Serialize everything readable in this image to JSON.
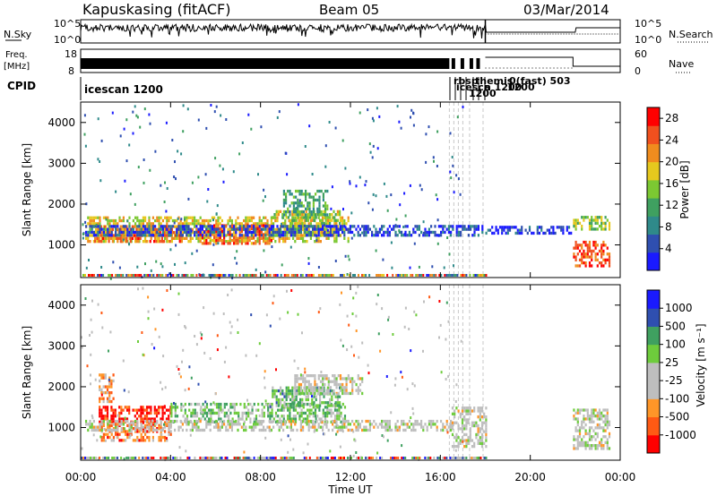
{
  "header": {
    "station": "Kapuskasing (fitACF)",
    "beam": "Beam 05",
    "date": "03/Mar/2014"
  },
  "panels": {
    "nsky": {
      "left_label": "N.Sky",
      "right_label": "N.Search",
      "left_ticks": [
        "10^5",
        "10^0"
      ],
      "right_ticks": [
        "10^5",
        "10^0"
      ]
    },
    "freq": {
      "left_label": "Freq.",
      "left_unit": "[MHz]",
      "left_ticks": [
        "18",
        "8"
      ],
      "right_label": "Nave",
      "right_ticks": [
        "60",
        "0"
      ]
    },
    "cpid": {
      "label": "CPID",
      "segments": [
        {
          "text": "icescan 1200"
        },
        {
          "text": "rbsp"
        },
        {
          "text": "icesca"
        },
        {
          "text": "themis"
        },
        {
          "text": "n 1200"
        },
        {
          "text": "0(fast) 503"
        },
        {
          "text": "1200"
        },
        {
          "text": "1200"
        }
      ]
    }
  },
  "colors": {
    "power": [
      "#1a1aff",
      "#2f4fb0",
      "#2f8a8a",
      "#3fa060",
      "#7cc832",
      "#e6c81e",
      "#f08c1e",
      "#f0501e",
      "#ff0000"
    ],
    "velocity": [
      "#ff0000",
      "#ff5a14",
      "#ff9628",
      "#bebebe",
      "#bebebe",
      "#6ecc3c",
      "#3fa060",
      "#2f4fb0",
      "#1a1aff"
    ]
  },
  "chart_data": [
    {
      "type": "heatmap",
      "id": "power",
      "ylabel": "Slant Range [km]",
      "yticks": [
        "1000",
        "2000",
        "3000",
        "4000"
      ],
      "ylim": [
        200,
        4500
      ],
      "xlim": [
        0,
        24
      ],
      "colorbar_label": "Power [dB]",
      "colorbar_ticks": [
        "4",
        "8",
        "12",
        "16",
        "20",
        "24",
        "28"
      ],
      "colorbar_range": [
        0,
        30
      ],
      "bands": [
        {
          "x0": 0.2,
          "x1": 11.9,
          "y0": 1050,
          "y1": 1650,
          "level": 0.62
        },
        {
          "x0": 0.6,
          "x1": 4.5,
          "y0": 1050,
          "y1": 1450,
          "level": 0.78
        },
        {
          "x0": 5.2,
          "x1": 8.5,
          "y0": 1000,
          "y1": 1450,
          "level": 0.82
        },
        {
          "x0": 8.5,
          "x1": 11.5,
          "y0": 1200,
          "y1": 1800,
          "level": 0.55
        },
        {
          "x0": 9.0,
          "x1": 11.0,
          "y0": 1700,
          "y1": 2300,
          "level": 0.35
        },
        {
          "x0": 0.2,
          "x1": 17.9,
          "y0": 1200,
          "y1": 1450,
          "level": 0.1
        },
        {
          "x0": 18.0,
          "x1": 21.8,
          "y0": 1250,
          "y1": 1400,
          "level": 0.05
        },
        {
          "x0": 21.9,
          "x1": 23.5,
          "y0": 450,
          "y1": 1050,
          "level": 0.88
        },
        {
          "x0": 21.9,
          "x1": 23.5,
          "y0": 1350,
          "y1": 1650,
          "level": 0.5
        }
      ]
    },
    {
      "type": "heatmap",
      "id": "velocity",
      "ylabel": "Slant Range [km]",
      "yticks": [
        "1000",
        "2000",
        "3000",
        "4000"
      ],
      "ylim": [
        200,
        4500
      ],
      "xlim": [
        0,
        24
      ],
      "xticks": [
        "00:00",
        "04:00",
        "08:00",
        "12:00",
        "16:00",
        "20:00",
        "00:00"
      ],
      "xlabel": "Time UT",
      "colorbar_label": "Velocity [m s⁻¹]",
      "colorbar_ticks": [
        "1000",
        "500",
        "100",
        "25",
        "-25",
        "-100",
        "-500",
        "-1000"
      ],
      "bands": [
        {
          "x0": 0.8,
          "x1": 4.0,
          "y0": 1100,
          "y1": 1500,
          "level": 0.05
        },
        {
          "x0": 0.9,
          "x1": 4.0,
          "y0": 650,
          "y1": 1100,
          "level": 0.2
        },
        {
          "x0": 0.8,
          "x1": 1.5,
          "y0": 1600,
          "y1": 2300,
          "level": 0.25
        },
        {
          "x0": 4.0,
          "x1": 11.8,
          "y0": 1100,
          "y1": 1550,
          "level": 0.62
        },
        {
          "x0": 8.5,
          "x1": 11.5,
          "y0": 1500,
          "y1": 1950,
          "level": 0.66
        },
        {
          "x0": 0.2,
          "x1": 16.5,
          "y0": 900,
          "y1": 1150,
          "level": 0.45
        },
        {
          "x0": 9.5,
          "x1": 12.5,
          "y0": 1800,
          "y1": 2300,
          "level": 0.45
        },
        {
          "x0": 16.5,
          "x1": 18.0,
          "y0": 500,
          "y1": 1500,
          "level": 0.45
        },
        {
          "x0": 21.9,
          "x1": 23.5,
          "y0": 450,
          "y1": 1450,
          "level": 0.45
        }
      ]
    }
  ]
}
